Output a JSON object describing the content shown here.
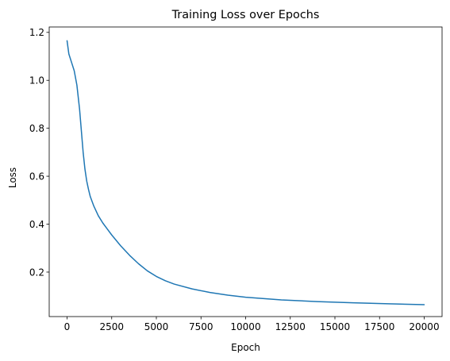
{
  "chart_data": {
    "type": "line",
    "title": "Training Loss over Epochs",
    "xlabel": "Epoch",
    "ylabel": "Loss",
    "xlim": [
      -1000,
      21000
    ],
    "ylim": [
      0.0145,
      1.2225
    ],
    "xticks": [
      0,
      2500,
      5000,
      7500,
      10000,
      12500,
      15000,
      17500,
      20000
    ],
    "yticks": [
      0.2,
      0.4,
      0.6,
      0.8,
      1.0,
      1.2
    ],
    "xtick_labels": [
      "0",
      "2500",
      "5000",
      "7500",
      "10000",
      "12500",
      "15000",
      "17500",
      "20000"
    ],
    "ytick_labels": [
      "0.2",
      "0.4",
      "0.6",
      "0.8",
      "1.0",
      "1.2"
    ],
    "grid": false,
    "legend": null,
    "series": [
      {
        "color": "#1f77b4",
        "x": [
          0,
          100,
          250,
          400,
          550,
          700,
          800,
          900,
          1000,
          1100,
          1200,
          1300,
          1500,
          1750,
          2000,
          2250,
          2500,
          3000,
          3500,
          4000,
          4500,
          5000,
          5500,
          6000,
          7000,
          8000,
          9000,
          10000,
          12000,
          14000,
          16000,
          18000,
          20000
        ],
        "y": [
          1.165,
          1.11,
          1.075,
          1.04,
          0.98,
          0.88,
          0.79,
          0.7,
          0.63,
          0.58,
          0.545,
          0.515,
          0.475,
          0.435,
          0.405,
          0.38,
          0.355,
          0.31,
          0.27,
          0.235,
          0.205,
          0.182,
          0.164,
          0.15,
          0.13,
          0.115,
          0.104,
          0.095,
          0.084,
          0.077,
          0.072,
          0.068,
          0.064
        ]
      }
    ]
  }
}
